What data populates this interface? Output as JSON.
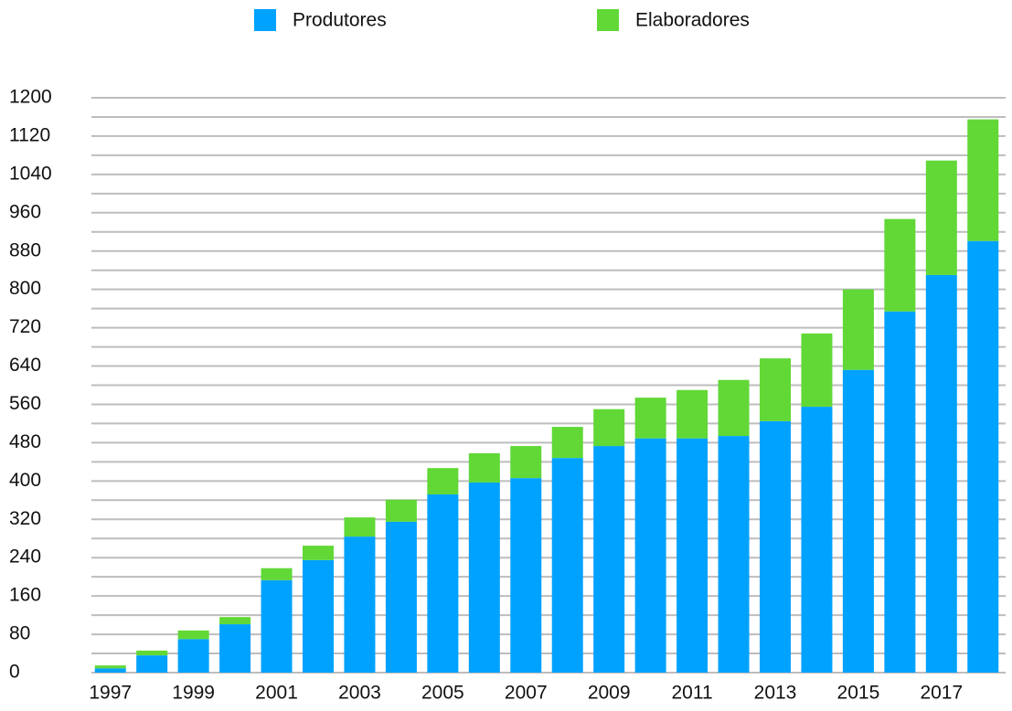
{
  "chart_data": {
    "type": "stacked_bar",
    "categories": [
      "1997",
      null,
      "1999",
      null,
      "2001",
      null,
      "2003",
      null,
      "2005",
      null,
      "2007",
      null,
      "2009",
      null,
      "2011",
      null,
      "2013",
      null,
      "2015",
      null,
      "2017",
      null
    ],
    "series": [
      {
        "name": "Produtores",
        "color": "#00a2ff",
        "values": [
          9,
          36,
          70,
          101,
          193,
          235,
          284,
          315,
          372,
          397,
          406,
          448,
          473,
          489,
          489,
          494,
          525,
          555,
          632,
          754,
          830,
          901
        ]
      },
      {
        "name": "Elaboradores",
        "color": "#61d836",
        "values": [
          6,
          10,
          18,
          15,
          25,
          30,
          40,
          46,
          55,
          61,
          67,
          65,
          77,
          85,
          101,
          117,
          131,
          153,
          168,
          193,
          239,
          254
        ]
      }
    ],
    "ylim": [
      0,
      1200
    ],
    "yticks": [
      0,
      80,
      160,
      240,
      320,
      400,
      480,
      560,
      640,
      720,
      800,
      880,
      960,
      1040,
      1120,
      1200
    ],
    "yminor_ticks": [
      40,
      120,
      200,
      280,
      360,
      440,
      520,
      600,
      680,
      760,
      840,
      920,
      1000,
      1080,
      1160
    ],
    "grid": true,
    "legend": "top"
  }
}
